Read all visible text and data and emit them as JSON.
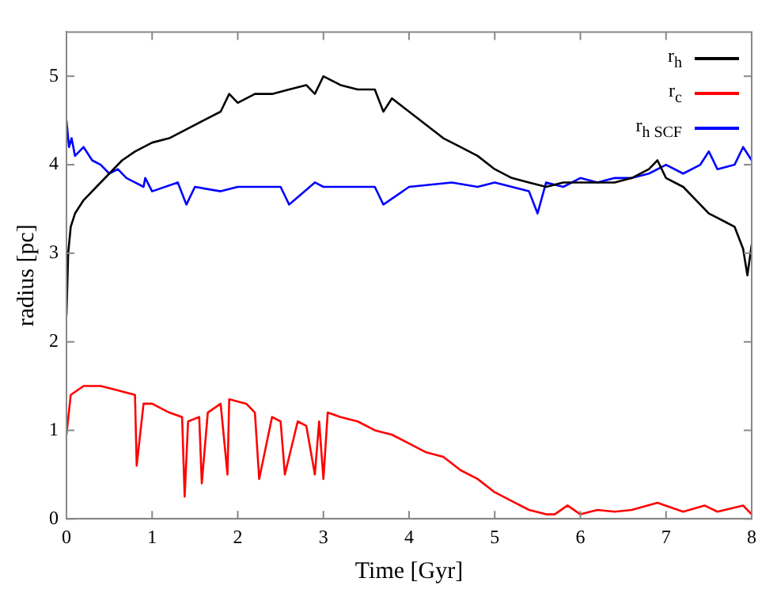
{
  "chart_data": {
    "type": "line",
    "xlabel": "Time [Gyr]",
    "ylabel": "radius [pc]",
    "xlim": [
      0,
      8
    ],
    "ylim": [
      0,
      5.5
    ],
    "xticks": [
      0,
      1,
      2,
      3,
      4,
      5,
      6,
      7,
      8
    ],
    "yticks": [
      0,
      1,
      2,
      3,
      4,
      5
    ],
    "grid": false,
    "legend": "top right",
    "marker": "none",
    "line_style": "solid",
    "series": [
      {
        "name": "r$_{h}$",
        "color": "#000000",
        "x": [
          0,
          0.02,
          0.05,
          0.1,
          0.2,
          0.35,
          0.5,
          0.65,
          0.8,
          1.0,
          1.2,
          1.4,
          1.6,
          1.8,
          1.9,
          2.0,
          2.2,
          2.4,
          2.6,
          2.8,
          2.9,
          3.0,
          3.1,
          3.2,
          3.4,
          3.6,
          3.7,
          3.8,
          4.0,
          4.2,
          4.4,
          4.6,
          4.8,
          5.0,
          5.2,
          5.4,
          5.6,
          5.8,
          6.0,
          6.2,
          6.4,
          6.6,
          6.8,
          6.9,
          7.0,
          7.2,
          7.4,
          7.5,
          7.6,
          7.7,
          7.8,
          7.9,
          7.95,
          8.0
        ],
        "values": [
          2.3,
          3.0,
          3.3,
          3.45,
          3.6,
          3.75,
          3.9,
          4.05,
          4.15,
          4.25,
          4.3,
          4.4,
          4.5,
          4.6,
          4.8,
          4.7,
          4.8,
          4.8,
          4.85,
          4.9,
          4.8,
          5.0,
          4.95,
          4.9,
          4.85,
          4.85,
          4.6,
          4.75,
          4.6,
          4.45,
          4.3,
          4.2,
          4.1,
          3.95,
          3.85,
          3.8,
          3.75,
          3.8,
          3.8,
          3.8,
          3.8,
          3.85,
          3.95,
          4.05,
          3.85,
          3.75,
          3.55,
          3.45,
          3.4,
          3.35,
          3.3,
          3.05,
          2.75,
          3.1
        ]
      },
      {
        "name": "r$_{c}$",
        "color": "#ff0000",
        "x": [
          0,
          0.05,
          0.2,
          0.4,
          0.6,
          0.8,
          0.82,
          0.9,
          1.0,
          1.2,
          1.35,
          1.38,
          1.42,
          1.55,
          1.58,
          1.65,
          1.8,
          1.88,
          1.9,
          2.1,
          2.2,
          2.25,
          2.4,
          2.5,
          2.55,
          2.7,
          2.8,
          2.9,
          2.95,
          3.0,
          3.05,
          3.2,
          3.4,
          3.6,
          3.8,
          4.0,
          4.2,
          4.4,
          4.6,
          4.8,
          5.0,
          5.2,
          5.4,
          5.6,
          5.7,
          5.85,
          6.0,
          6.2,
          6.4,
          6.6,
          6.9,
          7.2,
          7.45,
          7.6,
          7.9,
          8.0
        ],
        "values": [
          0.95,
          1.4,
          1.5,
          1.5,
          1.45,
          1.4,
          0.6,
          1.3,
          1.3,
          1.2,
          1.15,
          0.25,
          1.1,
          1.15,
          0.4,
          1.2,
          1.3,
          0.5,
          1.35,
          1.3,
          1.2,
          0.45,
          1.15,
          1.1,
          0.5,
          1.1,
          1.05,
          0.5,
          1.1,
          0.45,
          1.2,
          1.15,
          1.1,
          1.0,
          0.95,
          0.85,
          0.75,
          0.7,
          0.55,
          0.45,
          0.3,
          0.2,
          0.1,
          0.05,
          0.05,
          0.15,
          0.05,
          0.1,
          0.08,
          0.1,
          0.18,
          0.08,
          0.15,
          0.08,
          0.15,
          0.05
        ]
      },
      {
        "name": "r$_{h SCF}$",
        "color": "#0000ff",
        "x": [
          0,
          0.03,
          0.06,
          0.1,
          0.2,
          0.3,
          0.4,
          0.5,
          0.6,
          0.7,
          0.8,
          0.9,
          0.92,
          1.0,
          1.3,
          1.4,
          1.5,
          1.8,
          2.0,
          2.5,
          2.6,
          2.9,
          3.0,
          3.6,
          3.7,
          4.0,
          4.5,
          4.8,
          5.0,
          5.2,
          5.4,
          5.5,
          5.6,
          5.8,
          6.0,
          6.2,
          6.4,
          6.6,
          6.8,
          7.0,
          7.2,
          7.4,
          7.5,
          7.6,
          7.8,
          7.9,
          8.0
        ],
        "values": [
          4.5,
          4.2,
          4.3,
          4.1,
          4.2,
          4.05,
          4.0,
          3.9,
          3.95,
          3.85,
          3.8,
          3.75,
          3.85,
          3.7,
          3.8,
          3.55,
          3.75,
          3.7,
          3.75,
          3.75,
          3.55,
          3.8,
          3.75,
          3.75,
          3.55,
          3.75,
          3.8,
          3.75,
          3.8,
          3.75,
          3.7,
          3.45,
          3.8,
          3.75,
          3.85,
          3.8,
          3.85,
          3.85,
          3.9,
          4.0,
          3.9,
          4.0,
          4.15,
          3.95,
          4.0,
          4.2,
          4.05
        ]
      }
    ]
  }
}
